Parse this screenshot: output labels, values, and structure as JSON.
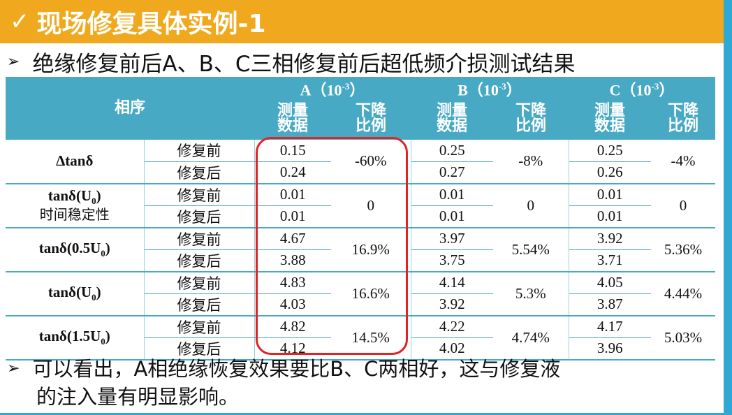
{
  "title": "现场修复具体实例-1",
  "heading": "绝缘修复前后A、B、C三相修复前后超低频介损测试结果",
  "table": {
    "col_phase": "相序",
    "groups": [
      {
        "name": "A（10",
        "exp": "-3",
        "close": "）"
      },
      {
        "name": "B（10",
        "exp": "-3",
        "close": "）"
      },
      {
        "name": "C（10",
        "exp": "-3",
        "close": "）"
      }
    ],
    "sub_measured": "测量数据",
    "sub_ratio": "下降比例",
    "before": "修复前",
    "after": "修复后",
    "rows": [
      {
        "label": "Δtanδ",
        "label_extra": "",
        "a": [
          "0.15",
          "0.24"
        ],
        "a_r": "-60%",
        "b": [
          "0.25",
          "0.27"
        ],
        "b_r": "-8%",
        "c": [
          "0.25",
          "0.26"
        ],
        "c_r": "-4%"
      },
      {
        "label": "tanδ(U",
        "label_sub": "0",
        "label_end": ")",
        "label_extra": "时间稳定性",
        "a": [
          "0.01",
          "0.01"
        ],
        "a_r": "0",
        "b": [
          "0.01",
          "0.01"
        ],
        "b_r": "0",
        "c": [
          "0.01",
          "0.01"
        ],
        "c_r": "0"
      },
      {
        "label": "tanδ(0.5U",
        "label_sub": "0",
        "label_end": ")",
        "label_extra": "",
        "a": [
          "4.67",
          "3.88"
        ],
        "a_r": "16.9%",
        "b": [
          "3.97",
          "3.75"
        ],
        "b_r": "5.54%",
        "c": [
          "3.92",
          "3.71"
        ],
        "c_r": "5.36%"
      },
      {
        "label": "tanδ(U",
        "label_sub": "0",
        "label_end": ")",
        "label_extra": "",
        "a": [
          "4.83",
          "4.03"
        ],
        "a_r": "16.6%",
        "b": [
          "4.14",
          "3.92"
        ],
        "b_r": "5.3%",
        "c": [
          "4.05",
          "3.87"
        ],
        "c_r": "4.44%"
      },
      {
        "label": "tanδ(1.5U",
        "label_sub": "0",
        "label_end": ")",
        "label_extra": "",
        "a": [
          "4.82",
          "4.12"
        ],
        "a_r": "14.5%",
        "b": [
          "4.22",
          "4.02"
        ],
        "b_r": "4.74%",
        "c": [
          "4.17",
          "3.96"
        ],
        "c_r": "5.03%"
      }
    ]
  },
  "conclusion_line1": "可以看出，A相绝缘恢复效果要比B、C两相好，这与修复液",
  "conclusion_line2": "的注入量有明显影响。",
  "colors": {
    "title_bg": "#f0a91e",
    "header_bg": "#48a9c5",
    "highlight": "#e32222",
    "side_strip": "#2fa8d4"
  }
}
